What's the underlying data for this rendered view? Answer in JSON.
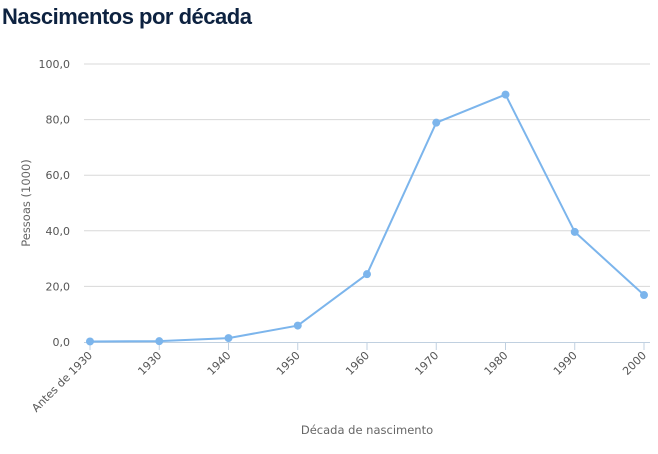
{
  "chart_data": {
    "type": "line",
    "title": "Nascimentos por década",
    "xlabel": "Década de nascimento",
    "ylabel": "Pessoas (1000)",
    "categories": [
      "Antes de 1930",
      "1930",
      "1940",
      "1950",
      "1960",
      "1970",
      "1980",
      "1990",
      "2000"
    ],
    "values": [
      0.2,
      0.3,
      1.4,
      5.9,
      24.4,
      78.9,
      89.0,
      39.6,
      16.9
    ],
    "ylim": [
      0,
      100
    ],
    "yticks": [
      "0,0",
      "20,0",
      "40,0",
      "60,0",
      "80,0",
      "100,0"
    ],
    "grid": true,
    "color": "#7cb5ec"
  }
}
